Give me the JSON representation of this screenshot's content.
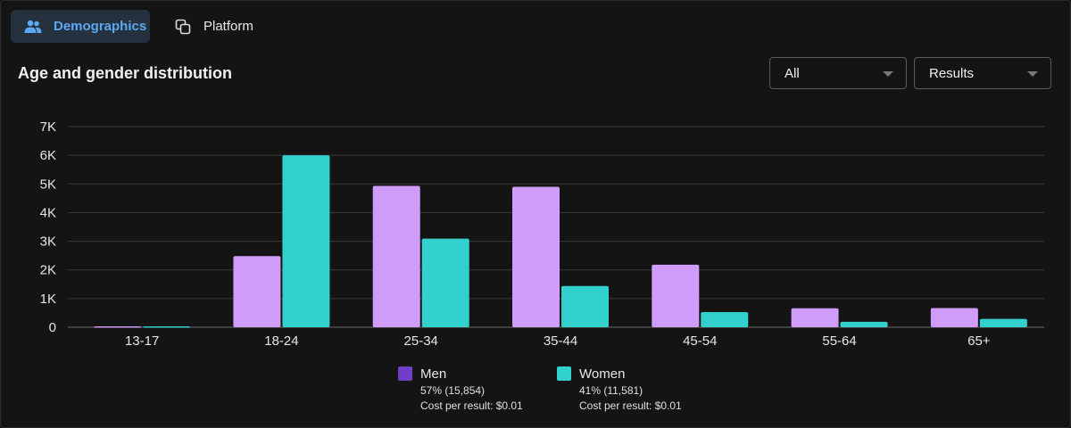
{
  "tabs": [
    {
      "label": "Demographics",
      "icon": "people-icon",
      "active": true
    },
    {
      "label": "Platform",
      "icon": "overlap-squares-icon",
      "active": false
    }
  ],
  "section_title": "Age and gender distribution",
  "filters": {
    "audience": "All",
    "metric": "Results"
  },
  "colors": {
    "men": "#d09cf9",
    "women": "#33d1ce",
    "men_legend": "#6f3fc9",
    "women_legend": "#33d1ce",
    "active_tab_bg": "#263140",
    "active_tab_text": "#5aa9f2"
  },
  "legend": [
    {
      "name": "Men",
      "summary": "57% (15,854)",
      "cost": "Cost per result: $0.01"
    },
    {
      "name": "Women",
      "summary": "41% (11,581)",
      "cost": "Cost per result: $0.01"
    }
  ],
  "chart_data": {
    "type": "bar",
    "categories": [
      "13-17",
      "18-24",
      "25-34",
      "35-44",
      "45-54",
      "55-64",
      "65+"
    ],
    "series": [
      {
        "name": "Men",
        "values": [
          30,
          2480,
          4930,
          4900,
          2180,
          660,
          670
        ]
      },
      {
        "name": "Women",
        "values": [
          30,
          6000,
          3090,
          1440,
          530,
          190,
          290
        ]
      }
    ],
    "ylim": [
      0,
      7000
    ],
    "yticks": [
      0,
      1000,
      2000,
      3000,
      4000,
      5000,
      6000,
      7000
    ],
    "ytick_labels": [
      "0",
      "1K",
      "2K",
      "3K",
      "4K",
      "5K",
      "6K",
      "7K"
    ],
    "grid": true
  }
}
